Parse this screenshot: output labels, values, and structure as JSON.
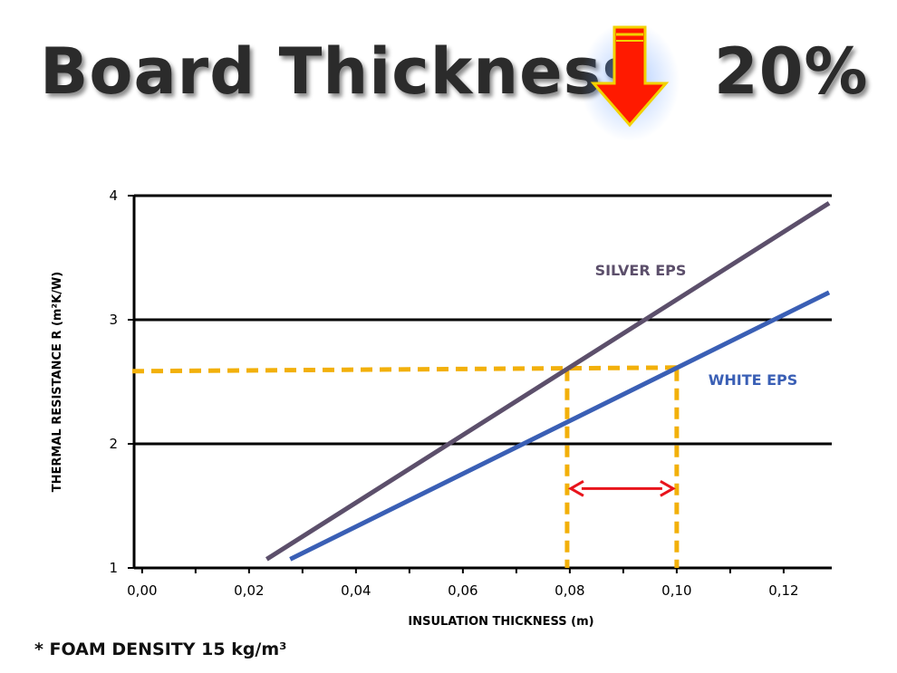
{
  "title": {
    "left": "Board Thickness",
    "right": "20%",
    "icon": "down-arrow-icon"
  },
  "footnote": "* FOAM DENSITY 15 kg/m³",
  "colors": {
    "silver_eps": "#5c4f6b",
    "white_eps": "#3a5fb5",
    "guide": "#f2b00a",
    "difference_arrow": "#e8141c",
    "arrow_fill": "#ff1a00",
    "arrow_outline": "#f2d200"
  },
  "chart_data": {
    "type": "line",
    "xlabel": "INSULATION THICKNESS (m)",
    "ylabel": "THERMAL RESISTANCE R (m²K/W)",
    "xlim": [
      -0.0015,
      0.129
    ],
    "ylim": [
      1,
      4
    ],
    "x_ticks": [
      0.0,
      0.02,
      0.04,
      0.06,
      0.08,
      0.1,
      0.12
    ],
    "x_tick_labels": [
      "0,00",
      "0,02",
      "0,04",
      "0,06",
      "0,08",
      "0,10",
      "0,12"
    ],
    "y_ticks": [
      1,
      2,
      3,
      4
    ],
    "y_tick_labels": [
      "1",
      "2",
      "3",
      "4"
    ],
    "grid": "horizontal",
    "series": [
      {
        "name": "SILVER EPS",
        "x": [
          0.0233,
          0.1285
        ],
        "y": [
          1.07,
          3.94
        ]
      },
      {
        "name": "WHITE EPS",
        "x": [
          0.0277,
          0.1285
        ],
        "y": [
          1.07,
          3.22
        ]
      }
    ],
    "reference_level": 2.6,
    "reference_x": [
      0.0795,
      0.1
    ],
    "difference_arrow_y": 1.64
  }
}
